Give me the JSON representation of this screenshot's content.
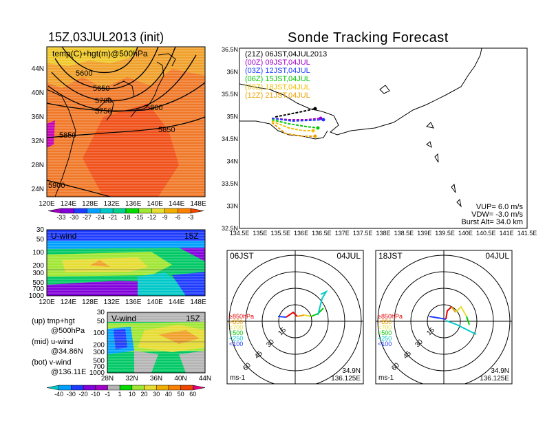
{
  "left_title": "15Z,03JUL2013 (init)",
  "right_title": "Sonde Tracking Forecast",
  "upper_map": {
    "overlay_label": "temp(C)+hgt(m)@500hPa",
    "contour_labels": [
      "5600",
      "5650",
      "5700",
      "5750",
      "5800",
      "5850",
      "5850",
      "5900"
    ],
    "lat_ticks": [
      "44N",
      "40N",
      "36N",
      "32N",
      "28N",
      "24N"
    ],
    "lon_ticks": [
      "120E",
      "124E",
      "128E",
      "132E",
      "136E",
      "140E",
      "144E",
      "148E"
    ],
    "colorbar_labels": [
      "-33",
      "-30",
      "-27",
      "-24",
      "-21",
      "-18",
      "-15",
      "-12",
      "-9",
      "-6",
      "-3"
    ],
    "colorbar_colors": [
      "#a000c8",
      "#8200dc",
      "#1e3cff",
      "#00a0ff",
      "#00c8c8",
      "#00d28c",
      "#00dc00",
      "#a0e632",
      "#e6dc32",
      "#f0af00",
      "#fa8200",
      "#f04600"
    ]
  },
  "u_wind": {
    "label": "U-wind",
    "time": "15Z",
    "pressure_ticks": [
      "30",
      "50",
      "100",
      "200",
      "300",
      "500",
      "700",
      "1000"
    ],
    "lon_ticks": [
      "120E",
      "124E",
      "128E",
      "132E",
      "136E",
      "140E",
      "144E",
      "148E"
    ]
  },
  "v_wind": {
    "label": "V-wind",
    "time": "15Z",
    "pressure_ticks": [
      "30",
      "50",
      "100",
      "200",
      "300",
      "500",
      "700",
      "1000"
    ],
    "lat_ticks": [
      "28N",
      "32N",
      "36N",
      "40N",
      "44N"
    ]
  },
  "panel_notes": [
    {
      "l1": "(up) tmp+hgt",
      "l2": "@500hPa"
    },
    {
      "l1": "(mid) u-wind",
      "l2": "@34.86N"
    },
    {
      "l1": "(bot) v-wind",
      "l2": "@136.11E"
    }
  ],
  "wind_colorbar": {
    "labels": [
      "-40",
      "-30",
      "-20",
      "-10",
      "-1",
      "1",
      "10",
      "20",
      "30",
      "40",
      "50",
      "60"
    ],
    "colors": [
      "#00c8c8",
      "#00a0ff",
      "#1e3cff",
      "#8200dc",
      "#a000c8",
      "#b4b4b4",
      "#00dc00",
      "#a0e632",
      "#e6dc32",
      "#f0af00",
      "#fa8200",
      "#f04600",
      "#e6007a"
    ]
  },
  "tracking": {
    "legend": [
      {
        "text": "(21Z) 06JST,04JUL2013",
        "color": "#000000"
      },
      {
        "text": "(00Z) 09JST,04JUL",
        "color": "#a000c8"
      },
      {
        "text": "(03Z) 12JST,04JUL",
        "color": "#1e3cff"
      },
      {
        "text": "(06Z) 15JST,04JUL",
        "color": "#00c800"
      },
      {
        "text": "(09Z) 18JST,04JUL",
        "color": "#f0c000"
      },
      {
        "text": "(12Z) 21JST,04JUL",
        "color": "#f0a000"
      }
    ],
    "lat_ticks": [
      "36.5N",
      "36N",
      "35.5N",
      "35N",
      "34.5N",
      "34N",
      "33.5N",
      "33N",
      "32.5N"
    ],
    "lon_ticks": [
      "134.5E",
      "135E",
      "135.5E",
      "136E",
      "136.5E",
      "137E",
      "137.5E",
      "138E",
      "138.5E",
      "139E",
      "139.5E",
      "140E",
      "140.5E",
      "141E",
      "141.5E"
    ],
    "params": {
      "vup": "VUP= 6.0 m/s",
      "vdw": "VDW= -3.0 m/s",
      "burst": "Burst Alt= 34.0 km"
    }
  },
  "hodographs": [
    {
      "time": "06JST",
      "date": "04JUL",
      "lat": "34.9N",
      "lon": "136.125E",
      "unit": "ms-1"
    },
    {
      "time": "18JST",
      "date": "04JUL",
      "lat": "34.9N",
      "lon": "136.125E",
      "unit": "ms-1"
    }
  ],
  "hodo_ring_labels": [
    "15",
    "30",
    "45",
    "60"
  ],
  "hodo_levels": [
    {
      "text": "≥850hPa",
      "color": "#e60000"
    },
    {
      "text": "<850",
      "color": "#f0a000"
    },
    {
      "text": "<700",
      "color": "#e6dc32"
    },
    {
      "text": "<500",
      "color": "#00c800"
    },
    {
      "text": "<250",
      "color": "#00c8c8"
    },
    {
      "text": "<100",
      "color": "#1e3cff"
    }
  ]
}
